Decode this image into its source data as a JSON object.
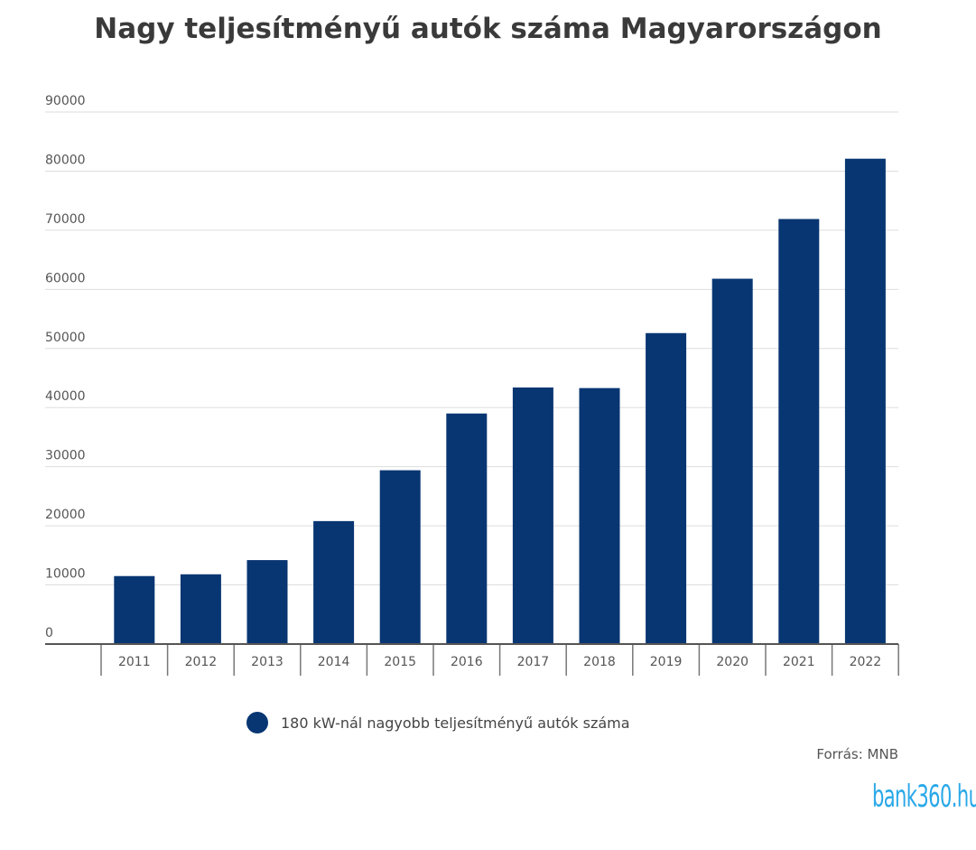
{
  "chart_data": {
    "type": "bar",
    "title": "Nagy teljesítményű autók száma Magyarországon",
    "categories": [
      "2011",
      "2012",
      "2013",
      "2014",
      "2015",
      "2016",
      "2017",
      "2018",
      "2019",
      "2020",
      "2021",
      "2022"
    ],
    "series": [
      {
        "name": "180 kW-nál nagyobb teljesítményű autók száma",
        "values": [
          11500,
          11800,
          14200,
          20800,
          29400,
          39000,
          43400,
          43300,
          52600,
          61800,
          71900,
          82100
        ],
        "color": "#083672"
      }
    ],
    "ylim": [
      0,
      90000
    ],
    "yticks": [
      0,
      10000,
      20000,
      30000,
      40000,
      50000,
      60000,
      70000,
      80000,
      90000
    ],
    "grid": true,
    "legend": "bottom",
    "source": "Forrás: MNB"
  },
  "logo": "bank360.hu"
}
